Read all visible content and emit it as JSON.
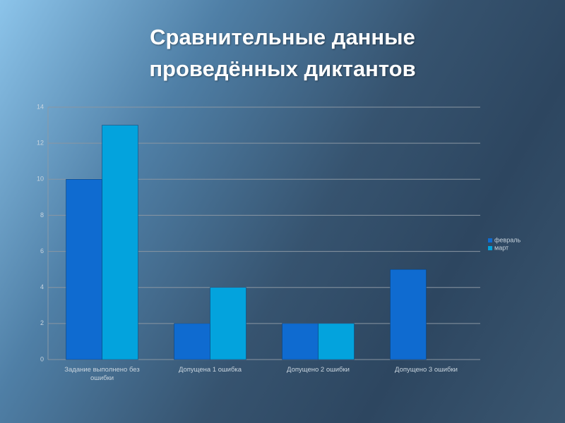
{
  "chart_data": {
    "type": "bar",
    "title": "Сравнительные данные проведённых диктантов",
    "categories": [
      "Задание выполнено без ошибки",
      "Допущена 1 ошибка",
      "Допущено 2 ошибки",
      "Допущено 3 ошибки"
    ],
    "series": [
      {
        "name": "февраль",
        "color": "#0f6bd0",
        "values": [
          10,
          2,
          2,
          5
        ]
      },
      {
        "name": "март",
        "color": "#03a3dd",
        "values": [
          13,
          4,
          2,
          0
        ]
      }
    ],
    "ylim": [
      0,
      14
    ],
    "yticks": [
      0,
      2,
      4,
      6,
      8,
      10,
      12,
      14
    ],
    "grid": true,
    "legend": "right"
  }
}
